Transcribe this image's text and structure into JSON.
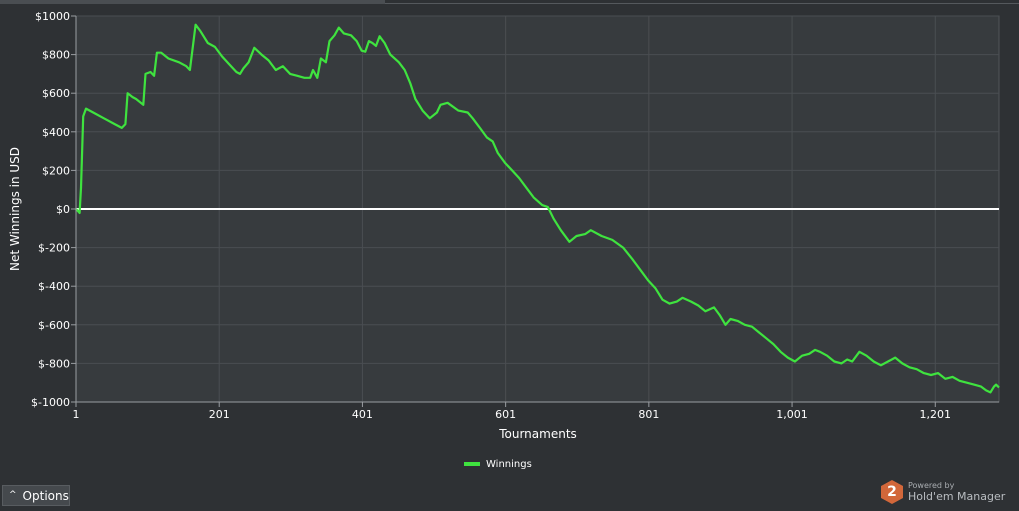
{
  "colors": {
    "background": "#2e3134",
    "plot_background": "#373b3e",
    "grid": "#4a4e52",
    "series": "#3fe33f",
    "zero_line": "#ffffff"
  },
  "chart_data": {
    "type": "line",
    "title": "",
    "xlabel": "Tournaments",
    "ylabel": "Net Winnings in USD",
    "xlim": [
      1,
      1290
    ],
    "ylim": [
      -1000,
      1000
    ],
    "x_ticks": [
      1,
      201,
      401,
      601,
      801,
      1001,
      1201
    ],
    "x_tick_labels": [
      "1",
      "201",
      "401",
      "601",
      "801",
      "1,001",
      "1,201"
    ],
    "y_ticks": [
      1000,
      800,
      600,
      400,
      200,
      0,
      -200,
      -400,
      -600,
      -800,
      -1000
    ],
    "y_tick_labels": [
      "$1000",
      "$800",
      "$600",
      "$400",
      "$200",
      "$0",
      "$-200",
      "$-400",
      "$-600",
      "$-800",
      "$-1000"
    ],
    "grid": true,
    "legend": "bottom-center",
    "series": [
      {
        "name": "Winnings",
        "points": [
          [
            1,
            0
          ],
          [
            6,
            -20
          ],
          [
            8,
            110
          ],
          [
            11,
            480
          ],
          [
            15,
            520
          ],
          [
            25,
            500
          ],
          [
            40,
            470
          ],
          [
            55,
            440
          ],
          [
            65,
            420
          ],
          [
            70,
            440
          ],
          [
            73,
            600
          ],
          [
            80,
            580
          ],
          [
            85,
            570
          ],
          [
            95,
            540
          ],
          [
            98,
            700
          ],
          [
            105,
            710
          ],
          [
            110,
            690
          ],
          [
            114,
            810
          ],
          [
            120,
            810
          ],
          [
            130,
            780
          ],
          [
            145,
            760
          ],
          [
            155,
            740
          ],
          [
            160,
            720
          ],
          [
            168,
            955
          ],
          [
            175,
            920
          ],
          [
            185,
            860
          ],
          [
            195,
            840
          ],
          [
            205,
            790
          ],
          [
            215,
            750
          ],
          [
            225,
            710
          ],
          [
            230,
            700
          ],
          [
            235,
            730
          ],
          [
            242,
            760
          ],
          [
            250,
            835
          ],
          [
            260,
            800
          ],
          [
            270,
            770
          ],
          [
            280,
            720
          ],
          [
            290,
            740
          ],
          [
            300,
            700
          ],
          [
            310,
            690
          ],
          [
            320,
            680
          ],
          [
            328,
            680
          ],
          [
            332,
            720
          ],
          [
            338,
            680
          ],
          [
            343,
            780
          ],
          [
            350,
            760
          ],
          [
            355,
            870
          ],
          [
            362,
            900
          ],
          [
            368,
            940
          ],
          [
            375,
            910
          ],
          [
            385,
            900
          ],
          [
            393,
            870
          ],
          [
            400,
            820
          ],
          [
            405,
            815
          ],
          [
            410,
            870
          ],
          [
            415,
            860
          ],
          [
            420,
            845
          ],
          [
            425,
            895
          ],
          [
            432,
            860
          ],
          [
            440,
            800
          ],
          [
            452,
            760
          ],
          [
            460,
            720
          ],
          [
            468,
            650
          ],
          [
            475,
            570
          ],
          [
            485,
            510
          ],
          [
            495,
            470
          ],
          [
            505,
            500
          ],
          [
            510,
            540
          ],
          [
            520,
            550
          ],
          [
            535,
            510
          ],
          [
            548,
            500
          ],
          [
            555,
            470
          ],
          [
            565,
            420
          ],
          [
            575,
            370
          ],
          [
            583,
            350
          ],
          [
            590,
            290
          ],
          [
            600,
            240
          ],
          [
            610,
            200
          ],
          [
            620,
            160
          ],
          [
            630,
            110
          ],
          [
            640,
            60
          ],
          [
            652,
            20
          ],
          [
            660,
            10
          ],
          [
            668,
            -50
          ],
          [
            678,
            -110
          ],
          [
            690,
            -170
          ],
          [
            700,
            -140
          ],
          [
            712,
            -130
          ],
          [
            720,
            -110
          ],
          [
            735,
            -140
          ],
          [
            750,
            -160
          ],
          [
            765,
            -200
          ],
          [
            778,
            -260
          ],
          [
            790,
            -320
          ],
          [
            800,
            -370
          ],
          [
            810,
            -410
          ],
          [
            820,
            -470
          ],
          [
            830,
            -490
          ],
          [
            840,
            -480
          ],
          [
            848,
            -460
          ],
          [
            860,
            -480
          ],
          [
            870,
            -500
          ],
          [
            880,
            -530
          ],
          [
            892,
            -510
          ],
          [
            900,
            -550
          ],
          [
            908,
            -600
          ],
          [
            915,
            -570
          ],
          [
            925,
            -580
          ],
          [
            935,
            -600
          ],
          [
            945,
            -610
          ],
          [
            955,
            -640
          ],
          [
            965,
            -670
          ],
          [
            975,
            -700
          ],
          [
            985,
            -740
          ],
          [
            995,
            -770
          ],
          [
            1005,
            -790
          ],
          [
            1015,
            -760
          ],
          [
            1025,
            -750
          ],
          [
            1033,
            -730
          ],
          [
            1040,
            -740
          ],
          [
            1050,
            -760
          ],
          [
            1060,
            -790
          ],
          [
            1070,
            -800
          ],
          [
            1078,
            -780
          ],
          [
            1085,
            -790
          ],
          [
            1095,
            -740
          ],
          [
            1105,
            -760
          ],
          [
            1115,
            -790
          ],
          [
            1125,
            -810
          ],
          [
            1135,
            -790
          ],
          [
            1145,
            -770
          ],
          [
            1155,
            -800
          ],
          [
            1165,
            -820
          ],
          [
            1175,
            -830
          ],
          [
            1185,
            -850
          ],
          [
            1195,
            -860
          ],
          [
            1205,
            -850
          ],
          [
            1215,
            -880
          ],
          [
            1225,
            -870
          ],
          [
            1235,
            -890
          ],
          [
            1245,
            -900
          ],
          [
            1255,
            -910
          ],
          [
            1265,
            -920
          ],
          [
            1272,
            -940
          ],
          [
            1278,
            -950
          ],
          [
            1283,
            -920
          ],
          [
            1286,
            -910
          ],
          [
            1290,
            -925
          ]
        ]
      }
    ]
  },
  "legend": {
    "items": [
      {
        "label": "Winnings"
      }
    ]
  },
  "options": {
    "label": "Options"
  },
  "brand": {
    "powered_by": "Powered by",
    "name": "Hold'em Manager",
    "logo_text": "2"
  }
}
